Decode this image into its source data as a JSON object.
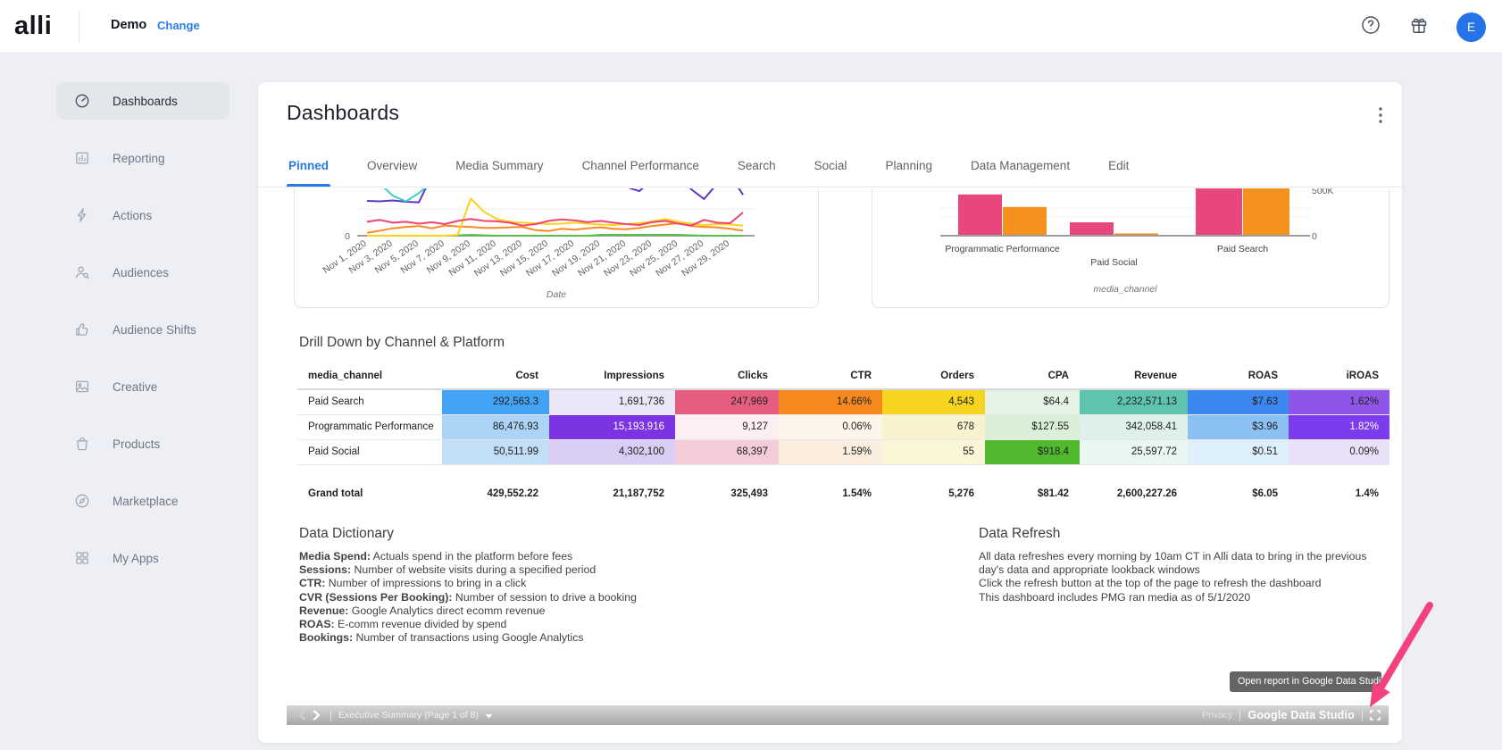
{
  "header": {
    "logo": "alli",
    "client_name": "Demo",
    "change_link": "Change",
    "avatar_initial": "E"
  },
  "sidebar": {
    "items": [
      {
        "label": "Dashboards",
        "icon": "gauge-icon",
        "active": true
      },
      {
        "label": "Reporting",
        "icon": "bar-chart-icon",
        "active": false
      },
      {
        "label": "Actions",
        "icon": "lightning-icon",
        "active": false
      },
      {
        "label": "Audiences",
        "icon": "user-search-icon",
        "active": false
      },
      {
        "label": "Audience Shifts",
        "icon": "thumbs-up-icon",
        "active": false
      },
      {
        "label": "Creative",
        "icon": "image-icon",
        "active": false
      },
      {
        "label": "Products",
        "icon": "bag-icon",
        "active": false
      },
      {
        "label": "Marketplace",
        "icon": "compass-icon",
        "active": false
      },
      {
        "label": "My Apps",
        "icon": "grid-icon",
        "active": false
      }
    ]
  },
  "main": {
    "title": "Dashboards",
    "tabs": [
      {
        "label": "Pinned",
        "active": true
      },
      {
        "label": "Overview",
        "active": false
      },
      {
        "label": "Media Summary",
        "active": false
      },
      {
        "label": "Channel Performance",
        "active": false
      },
      {
        "label": "Search",
        "active": false
      },
      {
        "label": "Social",
        "active": false
      },
      {
        "label": "Planning",
        "active": false
      },
      {
        "label": "Data Management",
        "active": false
      },
      {
        "label": "Edit",
        "active": false
      }
    ]
  },
  "report": {
    "drill_down": {
      "title": "Drill Down by Channel & Platform",
      "columns": [
        "media_channel",
        "Cost",
        "Impressions",
        "Clicks",
        "CTR",
        "Orders",
        "CPA",
        "Revenue",
        "ROAS",
        "iROAS"
      ],
      "rows": [
        {
          "channel": "Paid Search",
          "values": [
            "292,563.3",
            "1,691,736",
            "247,969",
            "14.66%",
            "4,543",
            "$64.4",
            "2,232,571.13",
            "$7.63",
            "1.62%"
          ],
          "bg": [
            "#41a3f5",
            "#ece7f8",
            "#e75d7f",
            "#f6891d",
            "#f6d41f",
            "#e4f3e5",
            "#5ec3af",
            "#3c87f0",
            "#8e55e8"
          ],
          "fg": [
            "#212121",
            "#212121",
            "#212121",
            "#212121",
            "#212121",
            "#212121",
            "#212121",
            "#212121",
            "#212121"
          ]
        },
        {
          "channel": "Programmatic Performance",
          "values": [
            "86,476.93",
            "15,193,916",
            "9,127",
            "0.06%",
            "678",
            "$127.55",
            "342,058.41",
            "$3.96",
            "1.82%"
          ],
          "bg": [
            "#abd4f6",
            "#7c33e2",
            "#fceef2",
            "#fdf5ea",
            "#f9f2cf",
            "#d9efd8",
            "#def0ec",
            "#8bc1f2",
            "#7d3bee"
          ],
          "fg": [
            "#212121",
            "#ffffff",
            "#212121",
            "#212121",
            "#212121",
            "#212121",
            "#212121",
            "#212121",
            "#ffffff"
          ]
        },
        {
          "channel": "Paid Social",
          "values": [
            "50,511.99",
            "4,302,100",
            "68,397",
            "1.59%",
            "55",
            "$918.4",
            "25,597.72",
            "$0.51",
            "0.09%"
          ],
          "bg": [
            "#c3dff8",
            "#d9cdf4",
            "#f3ccd7",
            "#fbeede",
            "#fbf6d8",
            "#50b92e",
            "#eaf6f3",
            "#def0fb",
            "#eae1f8"
          ],
          "fg": [
            "#212121",
            "#212121",
            "#212121",
            "#212121",
            "#212121",
            "#212121",
            "#212121",
            "#212121",
            "#212121"
          ]
        }
      ],
      "grand_total": {
        "label": "Grand total",
        "values": [
          "429,552.22",
          "21,187,752",
          "325,493",
          "1.54%",
          "5,276",
          "$81.42",
          "2,600,227.26",
          "$6.05",
          "1.4%"
        ]
      }
    },
    "data_dictionary": {
      "title": "Data Dictionary",
      "entries": [
        {
          "term": "Media Spend",
          "definition": "Actuals spend in the platform before fees"
        },
        {
          "term": "Sessions",
          "definition": "Number of website visits during a specified period"
        },
        {
          "term": "CTR",
          "definition": "Number of impressions to bring in a click"
        },
        {
          "term": "CVR (Sessions Per Booking)",
          "definition": "Number of session to drive a booking"
        },
        {
          "term": "Revenue",
          "definition": "Google Analytics direct ecomm revenue"
        },
        {
          "term": "ROAS",
          "definition": "E-comm revenue divided by spend"
        },
        {
          "term": "Bookings",
          "definition": "Number of transactions using Google Analytics"
        }
      ]
    },
    "data_refresh": {
      "title": "Data Refresh",
      "lines": [
        "All data refreshes every morning by 10am CT in Alli data to bring in the previous day's data and appropriate lookback windows",
        "Click the refresh button at the top of the page to refresh the dashboard",
        "This dashboard includes PMG ran media as of 5/1/2020"
      ]
    },
    "bottom_bar": {
      "page_label": "Executive Summary (Page 1 of 8)",
      "privacy": "Privacy",
      "brand": "Google Data Studio"
    },
    "tooltip": "Open report in Google Data Studio"
  },
  "chart_data": [
    {
      "type": "line",
      "xlabel": "Date",
      "x_tick_labels": [
        "Nov 1, 2020",
        "Nov 3, 2020",
        "Nov 5, 2020",
        "Nov 7, 2020",
        "Nov 9, 2020",
        "Nov 11, 2020",
        "Nov 13, 2020",
        "Nov 15, 2020",
        "Nov 17, 2020",
        "Nov 19, 2020",
        "Nov 21, 2020",
        "Nov 23, 2020",
        "Nov 25, 2020",
        "Nov 27, 2020",
        "Nov 29, 2020"
      ],
      "y_tick_labels": [
        "0"
      ],
      "note": "Chart is vertically clipped by report scroll; values are relative units where 100 = top of visible area, 0 = baseline",
      "series": [
        {
          "name": "series-green",
          "color": "#54c248",
          "values": [
            0,
            0,
            0,
            0,
            0,
            0,
            0,
            1,
            2,
            1,
            0,
            0,
            0,
            0,
            0,
            0,
            0,
            0,
            2,
            2,
            2,
            2,
            2,
            2,
            2,
            1,
            0,
            0,
            0,
            0
          ]
        },
        {
          "name": "series-purple",
          "color": "#5f35c9",
          "values": [
            75,
            74,
            76,
            73,
            72,
            130,
            180,
            200,
            195,
            190,
            200,
            205,
            195,
            200,
            205,
            200,
            190,
            185,
            195,
            200,
            105,
            96,
            120,
            160,
            140,
            100,
            79,
            112,
            130,
            88
          ]
        },
        {
          "name": "series-teal",
          "color": "#3ecfc0",
          "values": [
            132,
            112,
            86,
            74,
            92,
            116,
            142,
            162,
            170,
            174,
            170,
            166,
            160,
            164,
            170,
            166,
            160,
            164,
            170,
            166,
            160,
            156,
            160,
            164,
            170,
            164,
            156,
            160,
            170,
            160
          ]
        },
        {
          "name": "series-orange",
          "color": "#fb8a25",
          "values": [
            6,
            11,
            16,
            19,
            21,
            16,
            22,
            20,
            19,
            17,
            17,
            18,
            19,
            12,
            10,
            15,
            13,
            16,
            18,
            15,
            14,
            17,
            21,
            24,
            27,
            21,
            19,
            18,
            15,
            11
          ]
        },
        {
          "name": "series-yellow",
          "color": "#fcd21c",
          "values": [
            0,
            0,
            0,
            0,
            0,
            0,
            0,
            2,
            80,
            52,
            36,
            30,
            28,
            27,
            25,
            26,
            28,
            26,
            24,
            23,
            25,
            27,
            31,
            36,
            30,
            26,
            23,
            25,
            24,
            22
          ]
        },
        {
          "name": "series-pink",
          "color": "#f0436f",
          "values": [
            30,
            34,
            28,
            30,
            26,
            29,
            25,
            32,
            36,
            32,
            31,
            28,
            22,
            25,
            32,
            35,
            33,
            29,
            32,
            28,
            25,
            23,
            29,
            32,
            26,
            22,
            34,
            28,
            27,
            50
          ]
        }
      ]
    },
    {
      "type": "bar",
      "xlabel": "media_channel",
      "categories": [
        "Programmatic Performance",
        "Paid Social",
        "Paid Search"
      ],
      "y_tick_labels": [
        "0",
        "500K"
      ],
      "ylim": [
        0,
        500000
      ],
      "note": "Top of chart clipped by report scroll; Paid Search bars exceed the visible area",
      "series": [
        {
          "name": "series-pink",
          "color": "#e8477c",
          "values": [
            385000,
            125000,
            520000
          ]
        },
        {
          "name": "series-orange",
          "color": "#f5921e",
          "values": [
            268000,
            22000,
            515000
          ]
        }
      ]
    }
  ]
}
